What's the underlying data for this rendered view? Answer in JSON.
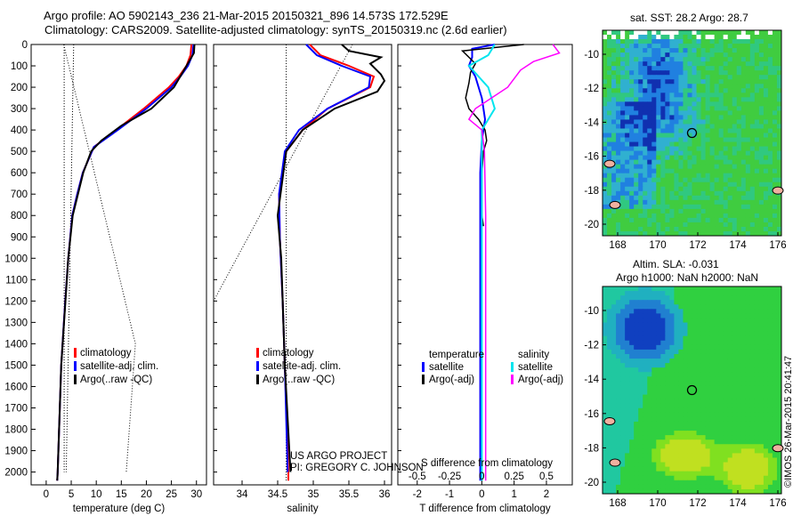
{
  "title_line1": "Argo profile: AO 5902143_236 21-Mar-2015 20150321_896 14.573S 172.529E",
  "title_line2": "Climatology: CARS2009. Satellite-adjusted climatology: synTS_20150319.nc (2.6d earlier)",
  "colors": {
    "climatology": "#ff0000",
    "satellite": "#0000ff",
    "argo": "#000000",
    "sal_satellite": "#00e5ee",
    "sal_argo": "#ff00ff"
  },
  "chart_data": [
    {
      "type": "line",
      "name": "temperature",
      "xlabel": "temperature (deg C)",
      "xlim": [
        -3,
        32
      ],
      "ylim": [
        2060,
        0
      ],
      "xticks": [
        0,
        5,
        10,
        15,
        20,
        25,
        30
      ],
      "yticks": [
        0,
        100,
        200,
        300,
        400,
        500,
        600,
        700,
        800,
        900,
        1000,
        1100,
        1200,
        1300,
        1400,
        1500,
        1600,
        1700,
        1800,
        1900,
        2000
      ],
      "legend": [
        "climatology",
        "satellite-adj. clim.",
        "Argo(..raw -QC)"
      ],
      "series": [
        {
          "name": "climatology",
          "points": [
            [
              0,
              29
            ],
            [
              50,
              28.8
            ],
            [
              100,
              28
            ],
            [
              150,
              26.5
            ],
            [
              200,
              24.5
            ],
            [
              300,
              19.5
            ],
            [
              400,
              14
            ],
            [
              480,
              9.5
            ],
            [
              600,
              7.3
            ],
            [
              700,
              6.2
            ],
            [
              800,
              5.2
            ],
            [
              1000,
              4.4
            ],
            [
              1200,
              3.8
            ],
            [
              1500,
              3
            ],
            [
              2000,
              2.3
            ],
            [
              2040,
              2.2
            ]
          ]
        },
        {
          "name": "satellite-adj. clim.",
          "points": [
            [
              0,
              29.4
            ],
            [
              50,
              29.2
            ],
            [
              100,
              28.3
            ],
            [
              150,
              26.8
            ],
            [
              200,
              25
            ],
            [
              300,
              20
            ],
            [
              400,
              14.3
            ],
            [
              480,
              9.5
            ],
            [
              600,
              7.3
            ],
            [
              700,
              6.2
            ],
            [
              800,
              5.2
            ],
            [
              1000,
              4.4
            ],
            [
              1200,
              3.8
            ],
            [
              1500,
              3
            ],
            [
              2000,
              2.3
            ],
            [
              2040,
              2.2
            ]
          ]
        },
        {
          "name": "Argo(..raw -QC)",
          "points": [
            [
              0,
              29.6
            ],
            [
              40,
              29.5
            ],
            [
              80,
              28.5
            ],
            [
              140,
              27
            ],
            [
              200,
              25.5
            ],
            [
              300,
              21
            ],
            [
              380,
              15
            ],
            [
              450,
              11
            ],
            [
              500,
              9
            ],
            [
              600,
              7.4
            ],
            [
              800,
              5.3
            ],
            [
              1000,
              4.4
            ],
            [
              1500,
              3
            ],
            [
              2000,
              2.3
            ],
            [
              2040,
              2.2
            ]
          ]
        }
      ],
      "reference_lines": [
        [
          [
            3.5,
            0
          ],
          [
            17.8,
            1400
          ],
          [
            16,
            2000
          ]
        ],
        [
          [
            5.5,
            0
          ],
          [
            4,
            2000
          ]
        ],
        [
          [
            3.6,
            0
          ],
          [
            3.6,
            2000
          ]
        ]
      ]
    },
    {
      "type": "line",
      "name": "salinity",
      "xlabel": "salinity",
      "xlim": [
        33.6,
        36.1
      ],
      "ylim": [
        2060,
        0
      ],
      "xticks": [
        34,
        34.5,
        35,
        35.5,
        36
      ],
      "legend": [
        "climatology",
        "satellite-adj. clim.",
        "Argo(..raw -QC)"
      ],
      "annotation": [
        "US ARGO PROJECT",
        "PI: GREGORY C. JOHNSON"
      ],
      "series": [
        {
          "name": "climatology",
          "points": [
            [
              0,
              34.95
            ],
            [
              50,
              35.1
            ],
            [
              100,
              35.5
            ],
            [
              150,
              35.85
            ],
            [
              200,
              35.8
            ],
            [
              300,
              35.2
            ],
            [
              400,
              34.85
            ],
            [
              500,
              34.62
            ],
            [
              700,
              34.52
            ],
            [
              900,
              34.53
            ],
            [
              1200,
              34.57
            ],
            [
              1500,
              34.6
            ],
            [
              2000,
              34.65
            ],
            [
              2040,
              34.65
            ]
          ]
        },
        {
          "name": "satellite-adj. clim.",
          "points": [
            [
              0,
              34.9
            ],
            [
              50,
              35.05
            ],
            [
              100,
              35.4
            ],
            [
              150,
              35.8
            ],
            [
              200,
              35.78
            ],
            [
              300,
              35.2
            ],
            [
              400,
              34.8
            ],
            [
              500,
              34.6
            ],
            [
              700,
              34.52
            ],
            [
              900,
              34.53
            ],
            [
              1200,
              34.57
            ],
            [
              1500,
              34.6
            ],
            [
              2000,
              34.64
            ]
          ]
        },
        {
          "name": "Argo(..raw -QC)",
          "points": [
            [
              0,
              35.4
            ],
            [
              30,
              35.5
            ],
            [
              60,
              35.95
            ],
            [
              90,
              35.8
            ],
            [
              140,
              35.95
            ],
            [
              170,
              36
            ],
            [
              220,
              35.9
            ],
            [
              300,
              35.3
            ],
            [
              400,
              34.85
            ],
            [
              500,
              34.62
            ],
            [
              800,
              34.5
            ],
            [
              1000,
              34.55
            ],
            [
              1500,
              34.6
            ],
            [
              2000,
              34.68
            ]
          ]
        }
      ],
      "reference_lines": [
        [
          [
            35.55,
            0
          ],
          [
            33.6,
            1200
          ]
        ],
        [
          [
            34.62,
            0
          ],
          [
            34.62,
            2040
          ]
        ]
      ]
    },
    {
      "type": "line",
      "name": "difference",
      "xlabel": "T difference from climatology",
      "x2label": "S difference from climatology",
      "xlim": [
        -2.6,
        2.8
      ],
      "xticks": [
        -2,
        -1,
        0,
        1,
        2
      ],
      "x2ticks": [
        "-0.5",
        "-0.25",
        "0",
        "0.25",
        "0.5"
      ],
      "ylim": [
        2060,
        0
      ],
      "legend": {
        "temperature": "temperature",
        "salinity": "salinity",
        "t_sat": "satellite",
        "t_argo": "Argo(-adj)",
        "s_sat": "satellite",
        "s_argo": "Argo(-adj)"
      },
      "series": [
        {
          "name": "T satellite",
          "points": [
            [
              0,
              0.4
            ],
            [
              20,
              -0.3
            ],
            [
              60,
              -0.3
            ],
            [
              100,
              -0.4
            ],
            [
              150,
              -0.2
            ],
            [
              250,
              0
            ],
            [
              350,
              0.1
            ],
            [
              450,
              0
            ],
            [
              600,
              -0.05
            ],
            [
              2040,
              -0.05
            ]
          ]
        },
        {
          "name": "T Argo(-adj)",
          "points": [
            [
              0,
              1.3
            ],
            [
              30,
              -0.6
            ],
            [
              60,
              -0.4
            ],
            [
              90,
              -0.2
            ],
            [
              130,
              -0.35
            ],
            [
              180,
              -0.4
            ],
            [
              250,
              -0.5
            ],
            [
              300,
              -0.4
            ],
            [
              350,
              -0.1
            ],
            [
              400,
              0.1
            ],
            [
              450,
              0.15
            ],
            [
              500,
              0.05
            ],
            [
              600,
              0
            ],
            [
              800,
              0
            ],
            [
              850,
              0.05
            ]
          ]
        },
        {
          "name": "S satellite",
          "points": [
            [
              0,
              0.1
            ],
            [
              50,
              0.05
            ],
            [
              100,
              -0.1
            ],
            [
              200,
              0.05
            ],
            [
              300,
              0.1
            ],
            [
              400,
              0
            ],
            [
              600,
              0
            ],
            [
              2040,
              0
            ]
          ]
        },
        {
          "name": "S Argo(-adj)",
          "points": [
            [
              0,
              0.55
            ],
            [
              40,
              0.6
            ],
            [
              80,
              0.4
            ],
            [
              120,
              0.3
            ],
            [
              200,
              0.2
            ],
            [
              300,
              -0.05
            ],
            [
              350,
              -0.1
            ],
            [
              400,
              0
            ],
            [
              500,
              0.02
            ],
            [
              800,
              0.03
            ],
            [
              2040,
              0.03
            ]
          ]
        }
      ]
    }
  ],
  "sst_map": {
    "title": "sat. SST: 28.2  Argo: 28.7",
    "xticks": [
      "168",
      "170",
      "172",
      "174",
      "176"
    ],
    "yticks": [
      "-10",
      "-12",
      "-14",
      "-16",
      "-18",
      "-20"
    ]
  },
  "sla_map": {
    "title1": "Altim. SLA: -0.031",
    "title2": "Argo h1000: NaN h2000: NaN",
    "xticks": [
      "168",
      "170",
      "172",
      "174",
      "176"
    ],
    "yticks": [
      "-10",
      "-12",
      "-14",
      "-16",
      "-18",
      "-20"
    ]
  },
  "stamp": "©IMOS 26-Mar-2015 20:41:47"
}
